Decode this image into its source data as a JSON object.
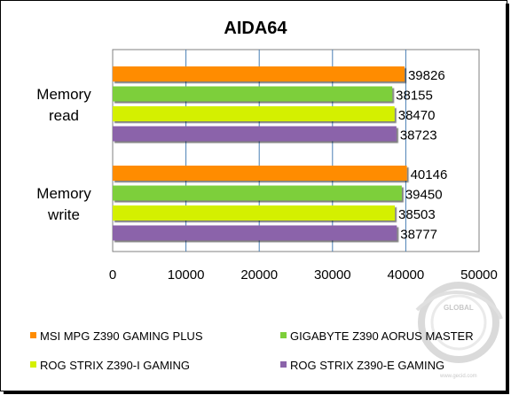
{
  "chart_data": {
    "type": "bar",
    "orientation": "horizontal",
    "title": "AIDA64",
    "xlabel": "",
    "ylabel": "",
    "categories": [
      "Memory read",
      "Memory write"
    ],
    "series": [
      {
        "name": "MSI MPG Z390 GAMING PLUS",
        "color": "#FF8C00",
        "values": [
          39826,
          40146
        ]
      },
      {
        "name": "GIGABYTE Z390 AORUS MASTER",
        "color": "#7DCF3A",
        "values": [
          38155,
          39450
        ]
      },
      {
        "name": "ROG STRIX Z390-I GAMING",
        "color": "#D4F000",
        "values": [
          38470,
          38503
        ]
      },
      {
        "name": "ROG STRIX Z390-E GAMING",
        "color": "#8B64AA",
        "values": [
          38723,
          38777
        ]
      }
    ],
    "xlim": [
      0,
      50000
    ],
    "xticks": [
      0,
      10000,
      20000,
      30000,
      40000,
      50000
    ],
    "grid": true,
    "legend_placement": "bottom"
  },
  "watermark": {
    "top": "GLOBAL",
    "bottom": "www.gecid.com"
  }
}
